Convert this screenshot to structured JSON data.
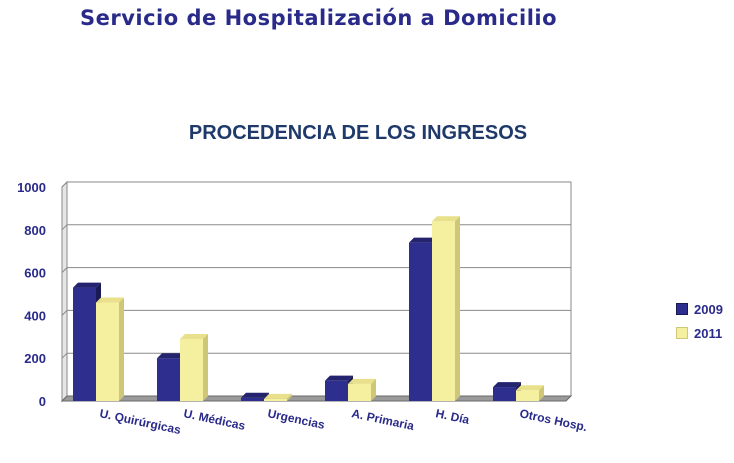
{
  "header": {
    "title": "Servicio de Hospitalización a Domicilio"
  },
  "chart_data": {
    "type": "bar",
    "title": "PROCEDENCIA DE LOS INGRESOS",
    "xlabel": "",
    "ylabel": "",
    "categories": [
      "U. Quirúrgicas",
      "U. Médicas",
      "Urgencias",
      "A. Primaria",
      "H. Día",
      "Otros Hosp."
    ],
    "series": [
      {
        "name": "2009",
        "values": [
          530,
          200,
          15,
          95,
          740,
          65
        ],
        "color": "#2e2e8f",
        "top_color": "#23236e",
        "side_color": "#1a1a55"
      },
      {
        "name": "2011",
        "values": [
          460,
          290,
          10,
          80,
          840,
          50
        ],
        "color": "#f5f0a0",
        "top_color": "#e8e08a",
        "side_color": "#cfc778"
      }
    ],
    "ylim": [
      0,
      1000
    ],
    "yticks": [
      "0",
      "200",
      "400",
      "600",
      "800",
      "1000"
    ],
    "grid": true,
    "legend_position": "right",
    "three_d": true
  }
}
